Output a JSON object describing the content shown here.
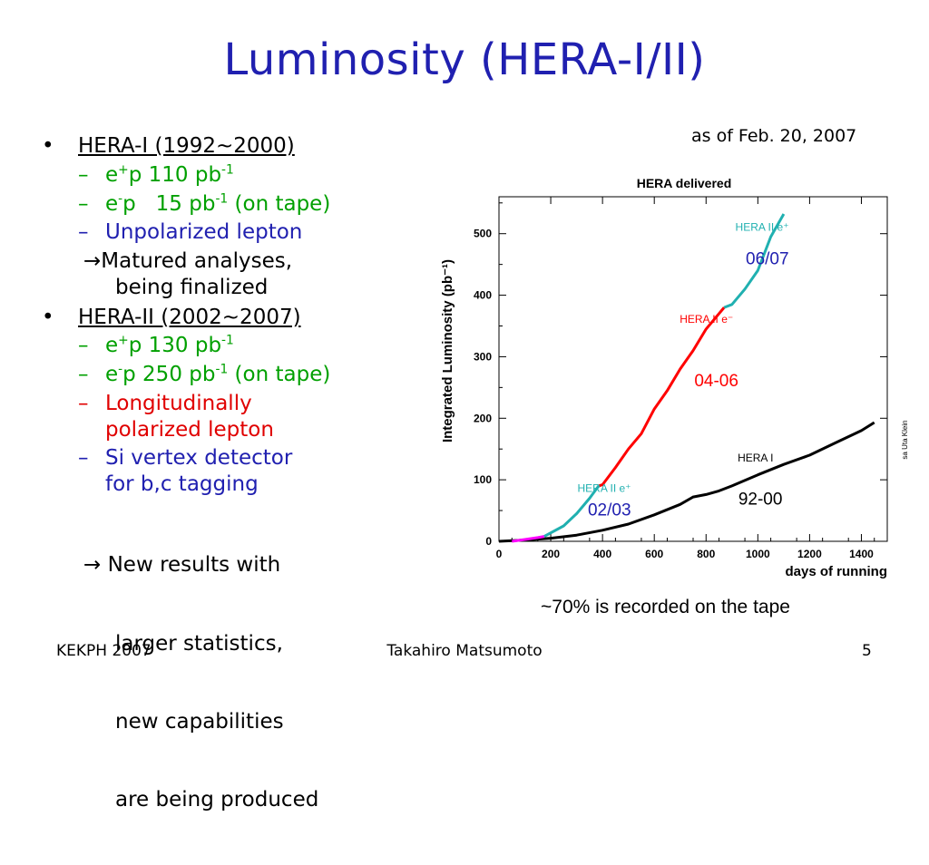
{
  "title": "Luminosity (HERA-I/II)",
  "as_of": "as of  Feb. 20, 2007",
  "bullets": {
    "hera1_heading": "HERA-I (1992~2000)",
    "hera1_items": [
      {
        "pre": "e",
        "sup1": "+",
        "mid": "p 110 pb",
        "sup2": "-1",
        "post": ""
      },
      {
        "pre": "e",
        "sup1": "-",
        "mid": "p   15 pb",
        "sup2": "-1",
        "post": " (on tape)"
      }
    ],
    "hera1_unpol": "Unpolarized lepton",
    "hera1_arrow_line1": "Matured analyses,",
    "hera1_arrow_line2": "being finalized",
    "hera2_heading": "HERA-II (2002~2007)",
    "hera2_items": [
      {
        "pre": "e",
        "sup1": "+",
        "mid": "p 130 pb",
        "sup2": "-1",
        "post": ""
      },
      {
        "pre": "e",
        "sup1": "-",
        "mid": "p 250 pb",
        "sup2": "-1",
        "post": " (on tape)"
      }
    ],
    "hera2_long_line1": "Longitudinally",
    "hera2_long_line2": "polarized lepton",
    "hera2_si_line1": "Si vertex detector",
    "hera2_si_line2": "for b,c tagging",
    "hera2_arrow_line1": " New results with",
    "hera2_arrow_line2": "larger statistics,",
    "hera2_arrow_line3": "new capabilities",
    "hera2_arrow_line4": "are being produced"
  },
  "chart_data": {
    "type": "line",
    "title": "HERA delivered",
    "xlabel": "days of running",
    "ylabel": "Integrated Luminosity (pb⁻¹)",
    "xlim": [
      0,
      1500
    ],
    "ylim": [
      0,
      560
    ],
    "x_ticks": [
      0,
      200,
      400,
      600,
      800,
      1000,
      1200,
      1400
    ],
    "y_ticks": [
      0,
      100,
      200,
      300,
      400,
      500
    ],
    "credit": "sa Uta Klein",
    "series": [
      {
        "name": "HERA I",
        "color": "#000000",
        "x": [
          0,
          100,
          200,
          300,
          400,
          500,
          600,
          700,
          750,
          800,
          850,
          900,
          1000,
          1100,
          1200,
          1300,
          1400,
          1450
        ],
        "y": [
          0,
          2,
          5,
          10,
          18,
          28,
          43,
          60,
          72,
          76,
          82,
          90,
          108,
          125,
          140,
          160,
          180,
          193
        ]
      },
      {
        "name": "HERA II e+",
        "color": "#ff00ff",
        "x": [
          50,
          100,
          150,
          175
        ],
        "y": [
          0,
          3,
          6,
          8
        ]
      },
      {
        "name": "HERA II e+",
        "color": "#20b0b0",
        "x": [
          175,
          250,
          300,
          350,
          385
        ],
        "y": [
          8,
          25,
          45,
          70,
          90
        ]
      },
      {
        "name": "HERA II e-",
        "color": "#ff0000",
        "x": [
          385,
          400,
          450,
          500,
          550,
          600,
          650,
          700,
          750,
          800,
          850,
          870
        ],
        "y": [
          90,
          92,
          120,
          150,
          175,
          215,
          245,
          280,
          310,
          345,
          370,
          380
        ]
      },
      {
        "name": "HERA II e+",
        "color": "#20b0b0",
        "x": [
          870,
          900,
          950,
          1000,
          1050,
          1100
        ],
        "y": [
          380,
          385,
          410,
          440,
          495,
          532
        ]
      }
    ],
    "labels": [
      {
        "text": "HERA II e⁺",
        "x": 1120,
        "y": 505,
        "color": "#20b0b0",
        "size": 12
      },
      {
        "text": "06/07",
        "x": 1120,
        "y": 450,
        "color": "#2020b0",
        "size": 19
      },
      {
        "text": "HERA II e⁻",
        "x": 905,
        "y": 355,
        "color": "#ff0000",
        "size": 12
      },
      {
        "text": "04-06",
        "x": 925,
        "y": 252,
        "color": "#ff0000",
        "size": 19
      },
      {
        "text": "HERA I",
        "x": 1060,
        "y": 130,
        "color": "#000000",
        "size": 12
      },
      {
        "text": "92-00",
        "x": 1095,
        "y": 60,
        "color": "#000000",
        "size": 19
      },
      {
        "text": "HERA II e⁺",
        "x": 510,
        "y": 80,
        "color": "#20b0b0",
        "size": 12
      },
      {
        "text": "02/03",
        "x": 510,
        "y": 42,
        "color": "#2020b0",
        "size": 19
      }
    ]
  },
  "recorded_note": "~70% is recorded on the tape",
  "footer": {
    "left": "KEKPH 2007",
    "center": "Takahiro Matsumoto",
    "right": "5"
  }
}
